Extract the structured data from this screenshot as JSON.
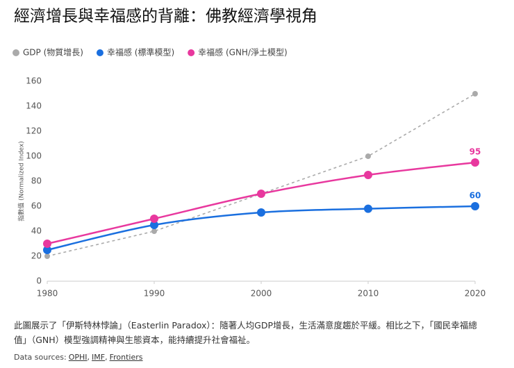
{
  "chart_data": {
    "type": "line",
    "title": "經濟增長與幸福感的背離：佛教經濟學視角",
    "y_label": "指數值 (Normalized Index)",
    "x": [
      1980,
      1990,
      2000,
      2010,
      2020
    ],
    "xlim": [
      1980,
      2020
    ],
    "xticks": [
      1980,
      1990,
      2000,
      2010,
      2020
    ],
    "ylim": [
      0,
      160
    ],
    "yticks": [
      0,
      20,
      40,
      60,
      80,
      100,
      120,
      140,
      160
    ],
    "grid": false,
    "series": [
      {
        "name": "GDP (物質增長)",
        "color": "#aaaaaa",
        "dashed": true,
        "smooth": false,
        "marker": 4,
        "label_last": false,
        "values": [
          20,
          40,
          70,
          100,
          150
        ]
      },
      {
        "name": "幸福感 (標準模型)",
        "color": "#1a6fdf",
        "dashed": false,
        "smooth": true,
        "marker": 6,
        "label_last": true,
        "values": [
          25,
          45,
          55,
          58,
          60
        ]
      },
      {
        "name": "幸福感 (GNH/淨土模型)",
        "color": "#e8389e",
        "dashed": false,
        "smooth": true,
        "marker": 6,
        "label_last": true,
        "values": [
          30,
          50,
          70,
          85,
          95
        ]
      }
    ]
  },
  "footer": {
    "description": "此圖展示了「伊斯特林悖論」（Easterlin Paradox）：隨著人均GDP增長，生活滿意度趨於平緩。相比之下，「國民幸福總值」（GNH）模型強調精神與生態資本，能持續提升社會福祉。",
    "sources_label": "Data sources:",
    "sources": [
      "OPHI",
      "IMF",
      "Frontiers"
    ]
  }
}
